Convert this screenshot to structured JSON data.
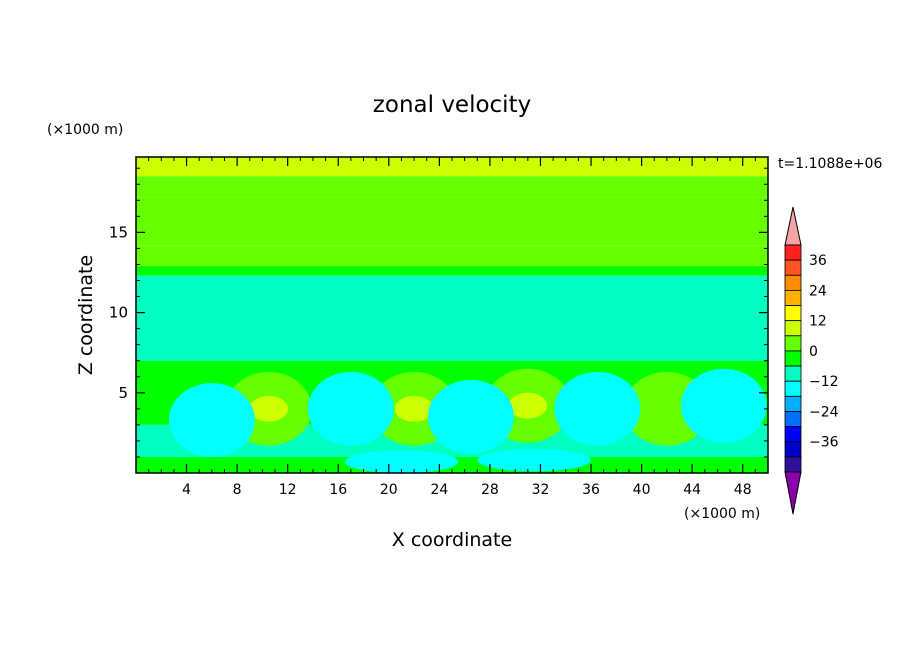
{
  "chart_data": {
    "type": "heatmap",
    "title": "zonal velocity",
    "xlabel": "X coordinate",
    "ylabel": "Z coordinate",
    "x_unit_label": "(×1000 m)",
    "z_unit_label": "(×1000 m)",
    "time_label": "t=1.1088e+06",
    "xlim": [
      0,
      50
    ],
    "ylim": [
      0,
      19.7
    ],
    "x_ticks": [
      4,
      8,
      12,
      16,
      20,
      24,
      28,
      32,
      36,
      40,
      44,
      48
    ],
    "y_ticks": [
      5,
      10,
      15
    ],
    "colorbar": {
      "levels": [
        -42,
        -36,
        -30,
        -24,
        -18,
        -12,
        -6,
        0,
        6,
        12,
        18,
        24,
        30,
        36,
        42
      ],
      "tick_labels": [
        "36",
        "24",
        "12",
        "0",
        "−12",
        "−24",
        "−36"
      ],
      "tick_values": [
        36,
        24,
        12,
        0,
        -12,
        -24,
        -36
      ],
      "colors_top_to_bottom": [
        "#f4a4a4",
        "#ff2020",
        "#ff5522",
        "#ff8c00",
        "#ffb300",
        "#ffff00",
        "#ccff00",
        "#66ff00",
        "#00ff00",
        "#00ffc0",
        "#00ffff",
        "#00b0ff",
        "#0070ff",
        "#0000ff",
        "#0000c8",
        "#30109a",
        "#8800aa"
      ]
    },
    "field_bands_z_to_value": [
      {
        "z_range": [
          18.5,
          19.7
        ],
        "value": 14
      },
      {
        "z_range": [
          17.2,
          18.5
        ],
        "value": 11
      },
      {
        "z_range": [
          14.2,
          17.2
        ],
        "value": 8
      },
      {
        "z_range": [
          12.9,
          14.2
        ],
        "value": 6
      },
      {
        "z_range": [
          12.3,
          12.9
        ],
        "value": 3
      },
      {
        "z_range": [
          7.0,
          12.3
        ],
        "value": -5
      },
      {
        "z_range": [
          3.0,
          7.0
        ],
        "value": 2
      },
      {
        "z_range": [
          1.0,
          3.0
        ],
        "value": -4
      },
      {
        "z_range": [
          0.0,
          1.0
        ],
        "value": 1
      }
    ],
    "cells": [
      {
        "x": 10.5,
        "z": 4.0,
        "value": 9,
        "note": "positive cell"
      },
      {
        "x": 22.0,
        "z": 4.0,
        "value": 9,
        "note": "positive cell"
      },
      {
        "x": 31.0,
        "z": 4.2,
        "value": 10,
        "note": "positive cell"
      },
      {
        "x": 42.0,
        "z": 4.0,
        "value": 6,
        "note": "positive cell"
      },
      {
        "x": 6.0,
        "z": 3.3,
        "value": -7,
        "note": "negative cell"
      },
      {
        "x": 17.0,
        "z": 4.0,
        "value": -7,
        "note": "negative cell"
      },
      {
        "x": 26.5,
        "z": 3.5,
        "value": -7,
        "note": "negative cell"
      },
      {
        "x": 36.5,
        "z": 4.0,
        "value": -7,
        "note": "negative cell"
      },
      {
        "x": 46.5,
        "z": 4.2,
        "value": -7,
        "note": "negative cell"
      },
      {
        "x": 21.0,
        "z": 0.7,
        "value": -10,
        "note": "near-surface cell"
      },
      {
        "x": 31.5,
        "z": 0.8,
        "value": -10,
        "note": "near-surface cell"
      }
    ]
  }
}
